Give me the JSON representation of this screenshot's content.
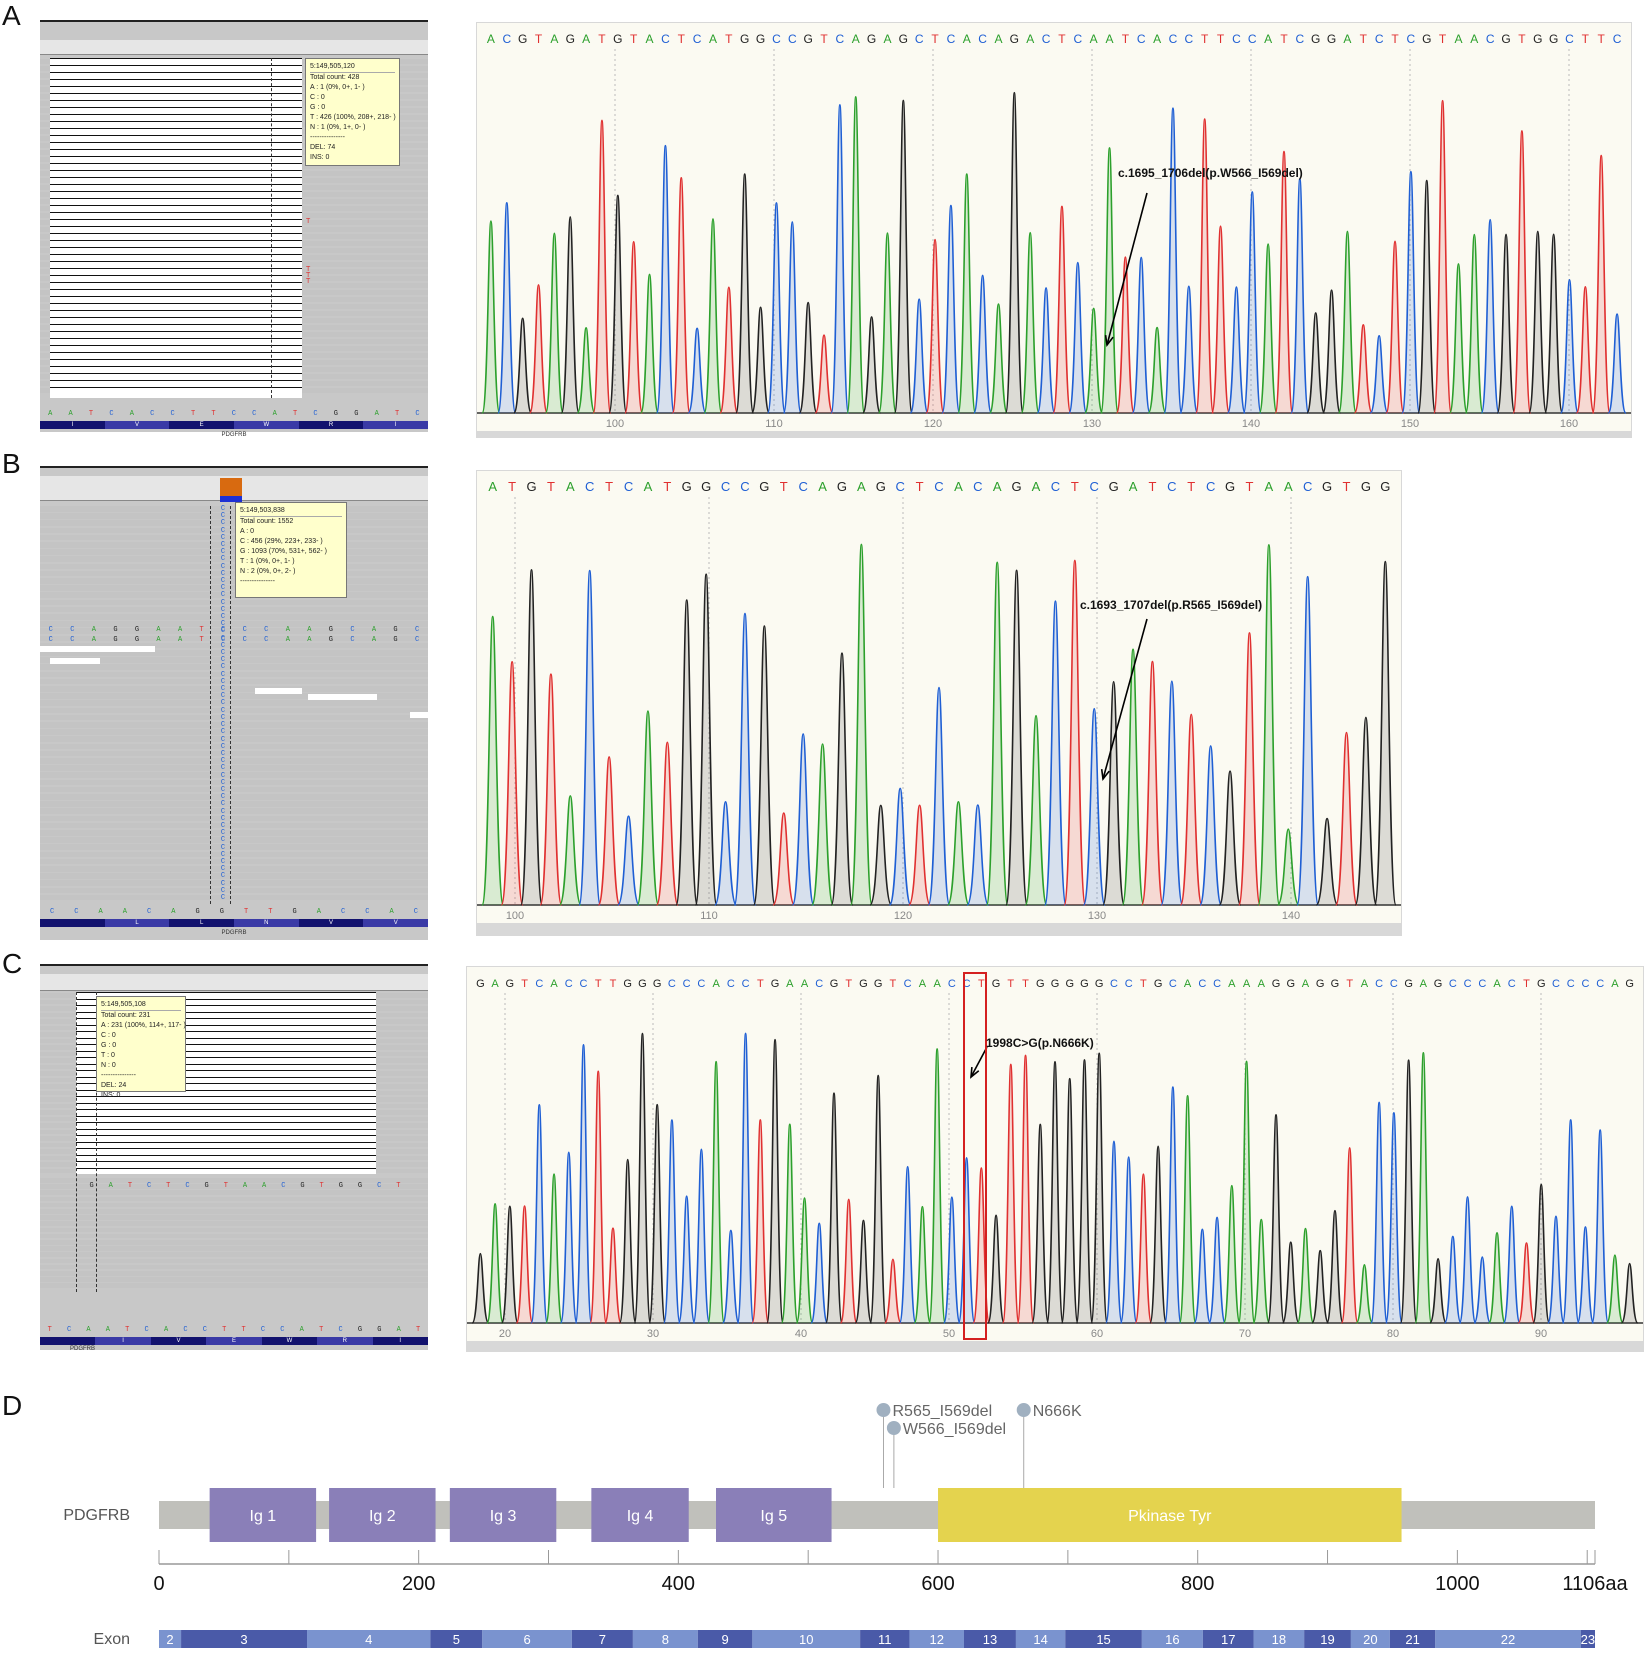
{
  "panels": {
    "A": {
      "letter": "A",
      "igv": {
        "position": "5:149,505,120",
        "tooltip": [
          "Total count: 428",
          "A : 1 (0%, 0+, 1- )",
          "C : 0",
          "G : 0",
          "T : 426 (100%, 208+, 218- )",
          "N : 1 (0%, 1+, 0- )",
          "---------------",
          "DEL: 74",
          "INS: 0"
        ],
        "ref_seq": [
          "A",
          "A",
          "T",
          "C",
          "A",
          "C",
          "C",
          "T",
          "T",
          "C",
          "C",
          "A",
          "T",
          "C",
          "G",
          "G",
          "A",
          "T",
          "C"
        ],
        "amino": [
          "I",
          "V",
          "E",
          "W",
          "R",
          "I"
        ],
        "gene": "PDGFRB"
      },
      "chromatogram": {
        "sequence": "ACGTAGATGTACTCATGGCCGTCAGAGCTCACAGACTCAATCACCTTCCATCGGATCTCGTAACGTGGCTTC",
        "ticks": [
          "100",
          "110",
          "120",
          "130",
          "140",
          "150",
          "160"
        ],
        "annotation": "c.1695_1706del(p.W566_I569del)"
      }
    },
    "B": {
      "letter": "B",
      "igv": {
        "position": "5:149,503,838",
        "tooltip": [
          "Total count: 1552",
          "A : 0",
          "C : 456 (29%, 223+, 233- )",
          "G : 1093 (70%, 531+, 562- )",
          "T : 1 (0%, 0+, 1- )",
          "N : 2 (0%, 0+, 2- )",
          "---------------"
        ],
        "read_seq": [
          "C",
          "C",
          "A",
          "G",
          "G",
          "A",
          "A",
          "T",
          "C",
          "C",
          "C",
          "A",
          "A",
          "G",
          "C",
          "A",
          "G",
          "C"
        ],
        "ref_seq": [
          "C",
          "C",
          "A",
          "A",
          "C",
          "A",
          "G",
          "G",
          "T",
          "T",
          "G",
          "A",
          "C",
          "C",
          "A",
          "C"
        ],
        "amino": [
          "",
          "L",
          "L",
          "N",
          "V",
          "V"
        ],
        "gene": "PDGFRB"
      },
      "chromatogram": {
        "sequence": "ATGTACTCATGGCCGTCAGAGCTCACAGACTCGATCTCGTAACGTGG",
        "ticks": [
          "100",
          "110",
          "120",
          "130",
          "140"
        ],
        "annotation": "c.1693_1707del(p.R565_I569del)"
      }
    },
    "C": {
      "letter": "C",
      "igv": {
        "position": "5:149,505,108",
        "tooltip": [
          "Total count: 231",
          "A : 231 (100%, 114+, 117- )",
          "C : 0",
          "G : 0",
          "T : 0",
          "N : 0",
          "---------------",
          "DEL: 24",
          "INS: 0"
        ],
        "read_seq": [
          "G",
          "A",
          "T",
          "C",
          "T",
          "C",
          "G",
          "T",
          "A",
          "A",
          "C",
          "G",
          "T",
          "G",
          "G",
          "C",
          "T"
        ],
        "ref_seq": [
          "T",
          "C",
          "A",
          "A",
          "T",
          "C",
          "A",
          "C",
          "C",
          "T",
          "T",
          "C",
          "C",
          "A",
          "T",
          "C",
          "G",
          "G",
          "A",
          "T"
        ],
        "amino": [
          "",
          "I",
          "V",
          "E",
          "W",
          "R",
          "I"
        ],
        "gene": "PDGFRB"
      },
      "chromatogram": {
        "sequence": "GAGTCACCTTGGGCCCACCTGAACGTGGTCAACCTGTTGGGGGCCTGCACCAAAGGAGGTACCGAGCCCACTGCCCCAG",
        "ticks": [
          "20",
          "30",
          "40",
          "50",
          "60",
          "70",
          "80",
          "90"
        ],
        "annotation": "1998C>G(p.N666K)"
      }
    }
  },
  "lollipop": {
    "letter": "D",
    "gene_label": "PDGFRB",
    "length_aa": 1106,
    "axis_ticks": [
      {
        "label": "0",
        "aa": 0
      },
      {
        "label": "200",
        "aa": 200
      },
      {
        "label": "400",
        "aa": 400
      },
      {
        "label": "600",
        "aa": 600
      },
      {
        "label": "800",
        "aa": 800
      },
      {
        "label": "1000",
        "aa": 1000
      },
      {
        "label": "1106aa",
        "aa": 1106
      }
    ],
    "domains": [
      {
        "name": "Ig 1",
        "start": 39,
        "end": 121,
        "color": "#8a7fb8"
      },
      {
        "name": "Ig 2",
        "start": 131,
        "end": 213,
        "color": "#8a7fb8"
      },
      {
        "name": "Ig 3",
        "start": 224,
        "end": 306,
        "color": "#8a7fb8"
      },
      {
        "name": "Ig 4",
        "start": 333,
        "end": 408,
        "color": "#8a7fb8"
      },
      {
        "name": "Ig 5",
        "start": 429,
        "end": 518,
        "color": "#8a7fb8"
      },
      {
        "name": "Pkinase Tyr",
        "start": 600,
        "end": 957,
        "color": "#e4d34e"
      }
    ],
    "mutations": [
      {
        "label": "R565_I569del",
        "aa": 558
      },
      {
        "label": "W566_I569del",
        "aa": 566
      },
      {
        "label": "N666K",
        "aa": 666
      }
    ],
    "exon_label": "Exon",
    "exons": [
      "2",
      "3",
      "4",
      "5",
      "6",
      "7",
      "8",
      "9",
      "10",
      "11",
      "12",
      "13",
      "14",
      "15",
      "16",
      "17",
      "18",
      "19",
      "20",
      "21",
      "22",
      "23"
    ],
    "exon_bounds": [
      0,
      17,
      114,
      209,
      249,
      318,
      365,
      415,
      457,
      540,
      578,
      620,
      660,
      698,
      757,
      804,
      843,
      882,
      918,
      948,
      983,
      1095,
      1106
    ],
    "colors": {
      "backbone": "#c0c0bb",
      "ig": "#8a7fb8",
      "kinase": "#e4d34e",
      "pin": "#a0b0c0",
      "exon_a": "#7a93cf",
      "exon_b": "#4a5aa8"
    }
  },
  "colors": {
    "A": "#2ca02c",
    "C": "#1f5fd4",
    "G": "#222222",
    "T": "#e03030",
    "mark": "#d42020"
  }
}
